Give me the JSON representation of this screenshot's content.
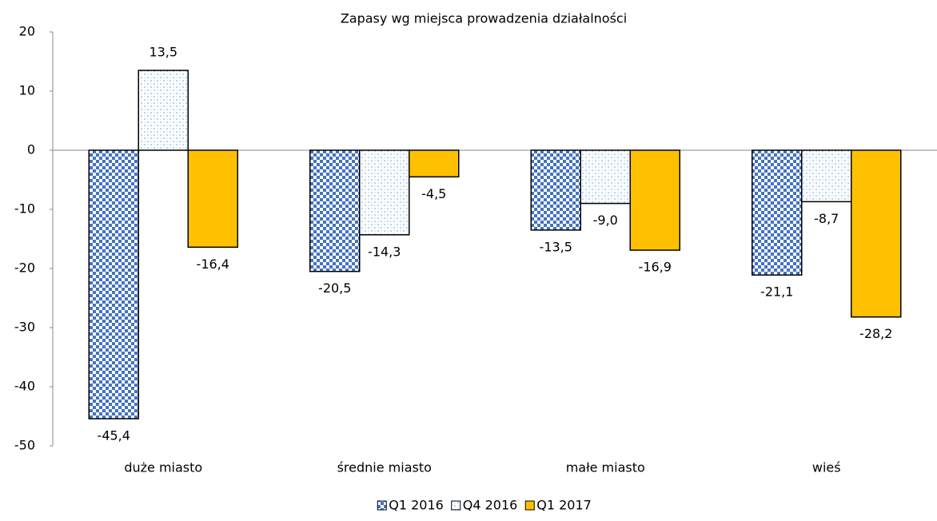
{
  "chart_data": {
    "type": "bar",
    "title": "Zapasy wg miejsca prowadzenia działalności",
    "categories": [
      "duże miasto",
      "średnie miasto",
      "małe miasto",
      "wieś"
    ],
    "series": [
      {
        "name": "Q1 2016",
        "color": "#4472c4",
        "pattern": "checker",
        "values": [
          -45.4,
          -20.5,
          -13.5,
          -21.1
        ],
        "value_labels": [
          "-45,4",
          "-20,5",
          "-13,5",
          "-21,1"
        ]
      },
      {
        "name": "Q4 2016",
        "color": "#5b9bd5",
        "pattern": "dots",
        "values": [
          13.5,
          -14.3,
          -9.0,
          -8.7
        ],
        "value_labels": [
          "13,5",
          "-14,3",
          "-9,0",
          "-8,7"
        ]
      },
      {
        "name": "Q1 2017",
        "color": "#ffc000",
        "pattern": "solid",
        "values": [
          -16.4,
          -4.5,
          -16.9,
          -28.2
        ],
        "value_labels": [
          "-16,4",
          "-4,5",
          "-16,9",
          "-28,2"
        ]
      }
    ],
    "ylim": [
      -50,
      20
    ],
    "yticks": [
      -50,
      -40,
      -30,
      -20,
      -10,
      0,
      10,
      20
    ],
    "grid": false,
    "legend": "bottom"
  }
}
